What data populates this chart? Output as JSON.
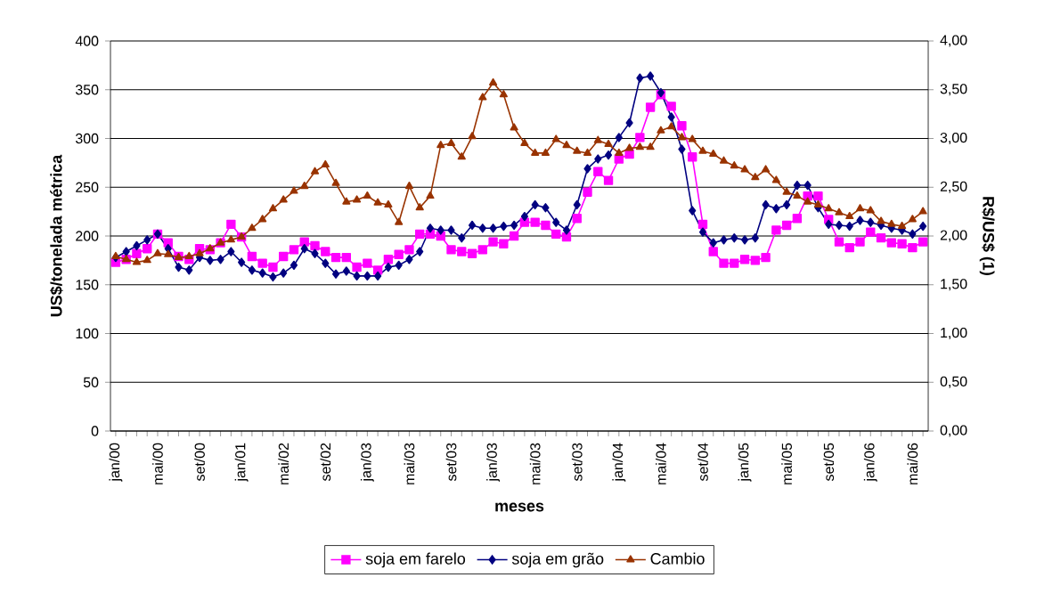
{
  "chart_data": {
    "type": "line",
    "xlabel": "meses",
    "ylabel": "US$/tonelada métrica",
    "y2label": "R$/US$ (1)",
    "categories": [
      "jan/00",
      null,
      null,
      null,
      "mai/00",
      null,
      null,
      null,
      "set/00",
      null,
      null,
      null,
      "jan/01",
      null,
      null,
      null,
      "mai/02",
      null,
      null,
      null,
      "set/02",
      null,
      null,
      null,
      "jan/03",
      null,
      null,
      null,
      "mai/03",
      null,
      null,
      null,
      "set/03",
      null,
      null,
      null,
      "jan/03",
      null,
      null,
      null,
      "mai/03",
      null,
      null,
      null,
      "set/03",
      null,
      null,
      null,
      "jan/04",
      null,
      null,
      null,
      "mai/04",
      null,
      null,
      null,
      "set/04",
      null,
      null,
      null,
      "jan/05",
      null,
      null,
      null,
      "mai/05",
      null,
      null,
      null,
      "set/05",
      null,
      null,
      null,
      "jan/06",
      null,
      null,
      null,
      "mai/06",
      null
    ],
    "ylim": [
      0,
      400
    ],
    "yticks": [
      0,
      50,
      100,
      150,
      200,
      250,
      300,
      350,
      400
    ],
    "y2lim": [
      0,
      4
    ],
    "y2ticks": [
      {
        "value": 0,
        "label": "0,00"
      },
      {
        "value": 0.5,
        "label": "0,50"
      },
      {
        "value": 1,
        "label": "1,00"
      },
      {
        "value": 1.5,
        "label": "1,50"
      },
      {
        "value": 2,
        "label": "2,00"
      },
      {
        "value": 2.5,
        "label": "2,50"
      },
      {
        "value": 3,
        "label": "3,00"
      },
      {
        "value": 3.5,
        "label": "3,50"
      },
      {
        "value": 4,
        "label": "4,00"
      }
    ],
    "grid": "y",
    "legend": "bottom",
    "series": [
      {
        "name": "soja em farelo",
        "color": "#ff00ff",
        "marker": "square",
        "values": [
          173,
          176,
          182,
          187,
          202,
          193,
          179,
          176,
          187,
          186,
          193,
          212,
          199,
          179,
          172,
          168,
          179,
          186,
          194,
          190,
          184,
          178,
          178,
          168,
          172,
          165,
          176,
          181,
          186,
          202,
          202,
          200,
          186,
          184,
          182,
          186,
          194,
          192,
          200,
          214,
          214,
          211,
          202,
          199,
          218,
          245,
          266,
          257,
          279,
          284,
          301,
          332,
          345,
          333,
          313,
          281,
          212,
          184,
          172,
          172,
          176,
          175,
          178,
          206,
          211,
          218,
          241,
          241,
          217,
          194,
          188,
          194,
          204,
          198,
          193,
          192,
          188,
          194
        ]
      },
      {
        "name": "soja em grão",
        "color": "#000080",
        "marker": "diamond",
        "values": [
          178,
          184,
          190,
          196,
          202,
          187,
          168,
          165,
          178,
          175,
          176,
          184,
          173,
          165,
          162,
          158,
          162,
          170,
          187,
          182,
          172,
          161,
          164,
          159,
          159,
          159,
          168,
          170,
          176,
          184,
          208,
          206,
          206,
          198,
          211,
          208,
          208,
          210,
          211,
          220,
          232,
          229,
          214,
          206,
          232,
          269,
          279,
          283,
          301,
          316,
          362,
          364,
          347,
          322,
          289,
          226,
          204,
          193,
          196,
          198,
          196,
          198,
          232,
          228,
          232,
          252,
          252,
          229,
          212,
          211,
          210,
          216,
          214,
          211,
          208,
          206,
          202,
          210
        ]
      },
      {
        "name": "Cambio",
        "color": "#993300",
        "marker": "triangle",
        "axis": "y2",
        "values": [
          1.79,
          1.76,
          1.73,
          1.75,
          1.82,
          1.81,
          1.78,
          1.79,
          1.82,
          1.87,
          1.93,
          1.96,
          1.99,
          2.08,
          2.17,
          2.28,
          2.37,
          2.46,
          2.51,
          2.66,
          2.73,
          2.54,
          2.35,
          2.37,
          2.41,
          2.34,
          2.32,
          2.14,
          2.51,
          2.29,
          2.41,
          2.93,
          2.95,
          2.81,
          3.02,
          3.42,
          3.57,
          3.45,
          3.11,
          2.95,
          2.85,
          2.85,
          2.99,
          2.93,
          2.87,
          2.85,
          2.98,
          2.94,
          2.85,
          2.9,
          2.91,
          2.91,
          3.08,
          3.12,
          3.01,
          2.99,
          2.87,
          2.84,
          2.77,
          2.72,
          2.68,
          2.6,
          2.68,
          2.57,
          2.45,
          2.41,
          2.35,
          2.32,
          2.28,
          2.24,
          2.2,
          2.28,
          2.26,
          2.15,
          2.12,
          2.1,
          2.17,
          2.25
        ]
      }
    ]
  }
}
